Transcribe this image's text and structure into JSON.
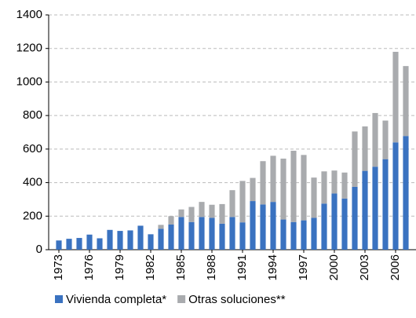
{
  "chart_data": {
    "type": "stacked-bar",
    "x": [
      1973,
      1974,
      1975,
      1976,
      1977,
      1978,
      1979,
      1980,
      1981,
      1982,
      1983,
      1984,
      1985,
      1986,
      1987,
      1988,
      1989,
      1990,
      1991,
      1992,
      1993,
      1994,
      1995,
      1996,
      1997,
      1998,
      1999,
      2000,
      2001,
      2002,
      2003,
      2004,
      2005,
      2006,
      2007
    ],
    "series": [
      {
        "name": "Vivienda completa*",
        "color": "#3a72c0",
        "values": [
          55,
          65,
          70,
          90,
          68,
          118,
          112,
          115,
          143,
          92,
          125,
          150,
          195,
          165,
          195,
          190,
          155,
          195,
          163,
          290,
          270,
          285,
          180,
          165,
          175,
          190,
          275,
          335,
          305,
          375,
          470,
          495,
          540,
          640,
          678
        ]
      },
      {
        "name": "Otras soluciones**",
        "color": "#a9abae",
        "values": [
          0,
          0,
          0,
          0,
          0,
          0,
          0,
          0,
          0,
          0,
          23,
          50,
          45,
          90,
          90,
          78,
          117,
          160,
          247,
          138,
          258,
          275,
          363,
          425,
          390,
          240,
          192,
          137,
          155,
          330,
          265,
          320,
          230,
          540,
          417
        ]
      }
    ],
    "xlim": [
      1972,
      2008
    ],
    "xticks": [
      1973,
      1976,
      1979,
      1982,
      1985,
      1988,
      1991,
      1994,
      1997,
      2000,
      2003,
      2006
    ],
    "ylim": [
      0,
      1400
    ],
    "yticks": [
      0,
      200,
      400,
      600,
      800,
      1000,
      1200,
      1400
    ],
    "grid": true
  }
}
